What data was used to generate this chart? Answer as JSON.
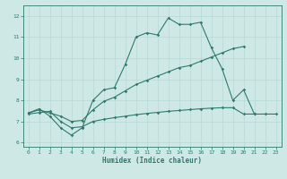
{
  "title": "",
  "xlabel": "Humidex (Indice chaleur)",
  "bg_color": "#cde8e5",
  "line_color": "#2e7b6e",
  "grid_color": "#b8d8d5",
  "xlim": [
    -0.5,
    23.5
  ],
  "ylim": [
    5.8,
    12.5
  ],
  "xticks": [
    0,
    1,
    2,
    3,
    4,
    5,
    6,
    7,
    8,
    9,
    10,
    11,
    12,
    13,
    14,
    15,
    16,
    17,
    18,
    19,
    20,
    21,
    22,
    23
  ],
  "yticks": [
    6,
    7,
    8,
    9,
    10,
    11,
    12
  ],
  "line1_x": [
    0,
    1,
    2,
    3,
    4,
    5,
    6,
    7,
    8,
    9,
    10,
    11,
    12,
    13,
    14,
    15,
    16,
    17,
    18,
    19,
    20,
    21
  ],
  "line1_y": [
    7.4,
    7.6,
    7.25,
    6.7,
    6.35,
    6.7,
    8.0,
    8.5,
    8.6,
    9.7,
    11.0,
    11.2,
    11.1,
    11.9,
    11.6,
    11.6,
    11.7,
    10.5,
    9.5,
    8.0,
    8.5,
    7.35
  ],
  "line2_x": [
    0,
    1,
    2,
    3,
    4,
    5,
    6,
    7,
    8,
    9,
    10,
    11,
    12,
    13,
    14,
    15,
    16,
    17,
    18,
    19,
    20
  ],
  "line2_y": [
    7.4,
    7.55,
    7.4,
    7.25,
    7.0,
    7.05,
    7.55,
    7.95,
    8.15,
    8.45,
    8.75,
    8.95,
    9.15,
    9.35,
    9.55,
    9.65,
    9.85,
    10.05,
    10.25,
    10.45,
    10.55
  ],
  "line3_x": [
    0,
    1,
    2,
    3,
    4,
    5,
    6,
    7,
    8,
    9,
    10,
    11,
    12,
    13,
    14,
    15,
    16,
    17,
    18,
    19,
    20,
    21,
    22,
    23
  ],
  "line3_y": [
    7.35,
    7.42,
    7.48,
    7.0,
    6.7,
    6.75,
    7.0,
    7.1,
    7.18,
    7.25,
    7.32,
    7.38,
    7.43,
    7.48,
    7.52,
    7.56,
    7.6,
    7.63,
    7.65,
    7.65,
    7.35,
    7.35,
    7.35,
    7.35
  ]
}
